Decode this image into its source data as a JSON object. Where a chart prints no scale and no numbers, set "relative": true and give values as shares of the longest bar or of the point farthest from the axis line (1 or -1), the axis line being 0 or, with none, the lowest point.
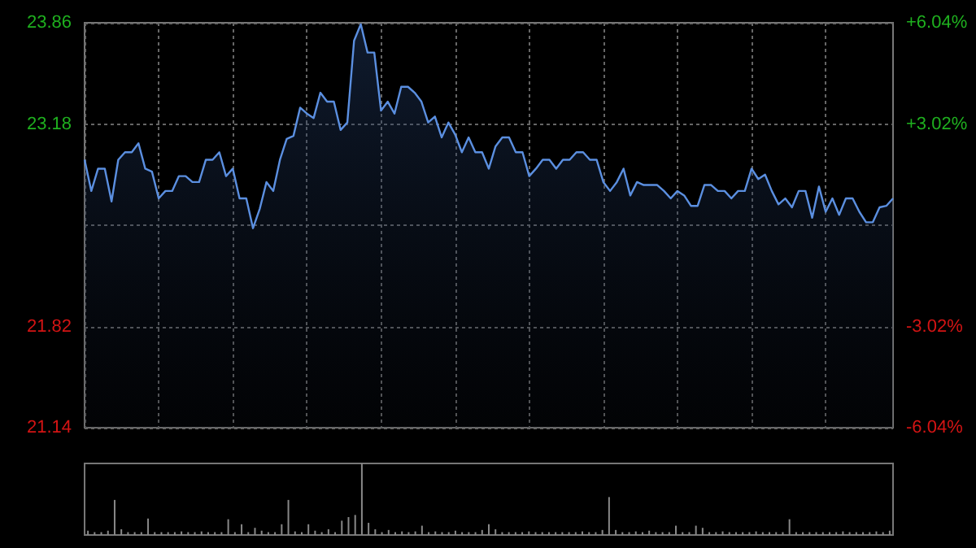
{
  "chart_data": [
    {
      "type": "area",
      "categories": [
        null,
        null,
        null,
        null,
        null,
        null,
        null,
        null,
        null,
        null,
        null,
        null,
        null,
        null,
        null,
        null,
        null,
        null,
        null,
        null,
        null,
        null,
        null,
        null,
        null,
        null,
        null,
        null,
        null,
        null,
        null,
        null,
        null,
        null,
        null,
        null,
        null,
        null,
        null,
        null,
        null,
        null,
        null,
        null,
        null,
        null,
        null,
        null,
        null,
        null,
        null,
        null,
        null,
        null,
        null,
        null,
        null,
        null,
        null,
        null,
        null,
        null,
        null,
        null,
        null,
        null,
        null,
        null,
        null,
        null,
        null,
        null,
        null,
        null,
        null,
        null,
        null,
        null,
        null,
        null,
        null,
        null,
        null,
        null,
        null,
        null,
        null,
        null,
        null,
        null,
        null,
        null,
        null,
        null,
        null,
        null,
        null,
        null,
        null,
        null,
        null,
        null,
        null,
        null,
        null,
        null,
        null,
        null,
        null,
        null,
        null,
        null,
        null,
        null,
        null,
        null,
        null,
        null,
        null,
        null,
        null
      ],
      "ylim": [
        21.14,
        23.86
      ],
      "yticks": [
        21.14,
        21.82,
        {
          "value": 22.5,
          "label": null
        },
        23.18,
        23.86
      ],
      "y2lim": [
        -6.04,
        6.04
      ],
      "y2ticks": [
        {
          "value": -6.04,
          "label": "-6.04%"
        },
        {
          "value": -3.02,
          "label": "-3.02%"
        },
        {
          "value": 0,
          "label": null
        },
        {
          "value": 3.02,
          "label": "+3.02%"
        },
        {
          "value": 6.04,
          "label": "+6.04%"
        }
      ],
      "grid": true,
      "series": [
        {
          "color": "#5b8fe0",
          "values": [
            22.94,
            22.73,
            22.88,
            22.88,
            22.66,
            22.94,
            22.99,
            22.99,
            23.05,
            22.88,
            22.86,
            22.68,
            22.73,
            22.73,
            22.83,
            22.83,
            22.79,
            22.79,
            22.94,
            22.94,
            22.99,
            22.83,
            22.88,
            22.68,
            22.68,
            22.48,
            22.61,
            22.79,
            22.73,
            22.94,
            23.08,
            23.1,
            23.29,
            23.25,
            23.22,
            23.39,
            23.33,
            23.33,
            23.14,
            23.19,
            23.74,
            23.85,
            23.66,
            23.66,
            23.27,
            23.33,
            23.25,
            23.43,
            23.43,
            23.39,
            23.33,
            23.19,
            23.23,
            23.09,
            23.19,
            23.11,
            22.99,
            23.09,
            22.99,
            22.99,
            22.88,
            23.03,
            23.09,
            23.09,
            22.99,
            22.99,
            22.83,
            22.88,
            22.94,
            22.94,
            22.88,
            22.94,
            22.94,
            22.99,
            22.99,
            22.94,
            22.94,
            22.79,
            22.73,
            22.79,
            22.88,
            22.7,
            22.79,
            22.77,
            22.77,
            22.77,
            22.73,
            22.68,
            22.73,
            22.7,
            22.63,
            22.63,
            22.77,
            22.77,
            22.73,
            22.73,
            22.68,
            22.73,
            22.73,
            22.88,
            22.81,
            22.84,
            22.73,
            22.64,
            22.68,
            22.62,
            22.73,
            22.73,
            22.55,
            22.76,
            22.59,
            22.68,
            22.57,
            22.68,
            22.68,
            22.59,
            22.52,
            22.52,
            22.62,
            22.63,
            22.68
          ]
        }
      ]
    },
    {
      "type": "bar",
      "relative": true,
      "categories": [
        null,
        null,
        null,
        null,
        null,
        null,
        null,
        null,
        null,
        null,
        null,
        null,
        null,
        null,
        null,
        null,
        null,
        null,
        null,
        null,
        null,
        null,
        null,
        null,
        null,
        null,
        null,
        null,
        null,
        null,
        null,
        null,
        null,
        null,
        null,
        null,
        null,
        null,
        null,
        null,
        null,
        null,
        null,
        null,
        null,
        null,
        null,
        null,
        null,
        null,
        null,
        null,
        null,
        null,
        null,
        null,
        null,
        null,
        null,
        null,
        null,
        null,
        null,
        null,
        null,
        null,
        null,
        null,
        null,
        null,
        null,
        null,
        null,
        null,
        null,
        null,
        null,
        null,
        null,
        null,
        null,
        null,
        null,
        null,
        null,
        null,
        null,
        null,
        null,
        null,
        null,
        null,
        null,
        null,
        null,
        null,
        null,
        null,
        null,
        null,
        null,
        null,
        null,
        null,
        null,
        null,
        null,
        null,
        null,
        null,
        null,
        null,
        null,
        null,
        null,
        null,
        null,
        null,
        null,
        null,
        null
      ],
      "series": [
        {
          "color": "#888888",
          "values": [
            0.06,
            0.04,
            0.04,
            0.06,
            0.49,
            0.08,
            0.04,
            0.04,
            0.04,
            0.23,
            0.04,
            0.04,
            0.04,
            0.04,
            0.05,
            0.04,
            0.04,
            0.05,
            0.04,
            0.04,
            0.04,
            0.22,
            0.04,
            0.15,
            0.04,
            0.1,
            0.06,
            0.04,
            0.04,
            0.15,
            0.49,
            0.05,
            0.04,
            0.15,
            0.06,
            0.04,
            0.08,
            0.04,
            0.2,
            0.25,
            0.28,
            1,
            0.17,
            0.08,
            0.04,
            0.07,
            0.04,
            0.05,
            0.04,
            0.05,
            0.13,
            0.04,
            0.05,
            0.04,
            0.04,
            0.06,
            0.04,
            0.04,
            0.04,
            0.07,
            0.15,
            0.08,
            0.04,
            0.04,
            0.04,
            0.04,
            0.05,
            0.04,
            0.04,
            0.04,
            0.04,
            0.04,
            0.04,
            0.04,
            0.05,
            0.04,
            0.04,
            0.07,
            0.53,
            0.07,
            0.04,
            0.04,
            0.05,
            0.04,
            0.06,
            0.04,
            0.04,
            0.04,
            0.13,
            0.04,
            0.04,
            0.13,
            0.1,
            0.04,
            0.04,
            0.05,
            0.04,
            0.04,
            0.04,
            0.04,
            0.05,
            0.04,
            0.04,
            0.04,
            0.04,
            0.22,
            0.04,
            0.04,
            0.04,
            0.04,
            0.04,
            0.04,
            0.04,
            0.05,
            0.04,
            0.04,
            0.04,
            0.04,
            0.05,
            0.04,
            0.06
          ]
        }
      ]
    }
  ]
}
